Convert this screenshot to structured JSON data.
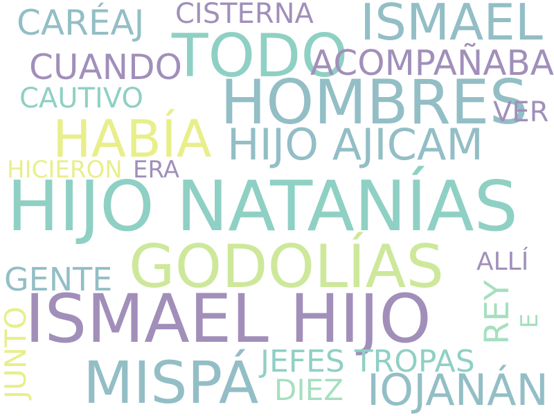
{
  "palette": {
    "teal": "#8fd0c4",
    "steel": "#93bec6",
    "purple": "#a18fba",
    "yellow": "#e8ef8a",
    "lime": "#cde89a",
    "mint": "#a6dfbf"
  },
  "words": [
    {
      "id": "hijo-natanias",
      "text": "HIJO NATANÍAS",
      "color": "#8fd0c4"
    },
    {
      "id": "ismael-hijo",
      "text": "ISMAEL HIJO",
      "color": "#a18fba"
    },
    {
      "id": "godolias",
      "text": "GODOLÍAS",
      "color": "#cde89a"
    },
    {
      "id": "hombres",
      "text": "HOMBRES",
      "color": "#93bec6"
    },
    {
      "id": "todo",
      "text": "TODO",
      "color": "#8fd0c4"
    },
    {
      "id": "ismael",
      "text": "ISMAEL",
      "color": "#93bec6"
    },
    {
      "id": "habia",
      "text": "HABÍA",
      "color": "#e8ef8a"
    },
    {
      "id": "hijo-ajicam",
      "text": "HIJO AJICAM",
      "color": "#93bec6"
    },
    {
      "id": "mispa",
      "text": "MISPÁ",
      "color": "#93bec6"
    },
    {
      "id": "iojanan",
      "text": "IOJANÁN",
      "color": "#93bec6"
    },
    {
      "id": "acompanaban",
      "text": "ACOMPAÑABAN",
      "color": "#a18fba"
    },
    {
      "id": "cuando",
      "text": "CUANDO",
      "color": "#a18fba"
    },
    {
      "id": "careaj",
      "text": "CARÉAJ",
      "color": "#93bec6"
    },
    {
      "id": "cisterna",
      "text": "CISTERNA",
      "color": "#a18fba"
    },
    {
      "id": "cautivo",
      "text": "CAUTIVO",
      "color": "#8fd0c4"
    },
    {
      "id": "ver",
      "text": "VER",
      "color": "#a18fba"
    },
    {
      "id": "hicieron",
      "text": "HICIERON",
      "color": "#e8ef8a"
    },
    {
      "id": "era",
      "text": "ERA",
      "color": "#a18fba"
    },
    {
      "id": "gente",
      "text": "GENTE",
      "color": "#93bec6"
    },
    {
      "id": "jefes-tropas",
      "text": "JEFES TROPAS",
      "color": "#8fd0c4"
    },
    {
      "id": "diez",
      "text": "DIEZ",
      "color": "#a6dfbf"
    },
    {
      "id": "alli",
      "text": "ALLÍ",
      "color": "#a18fba"
    },
    {
      "id": "rey",
      "text": "REY",
      "color": "#a6dfbf"
    },
    {
      "id": "e",
      "text": "E",
      "color": "#a6dfbf"
    },
    {
      "id": "junto",
      "text": "JUNTO",
      "color": "#e8ef8a"
    }
  ]
}
